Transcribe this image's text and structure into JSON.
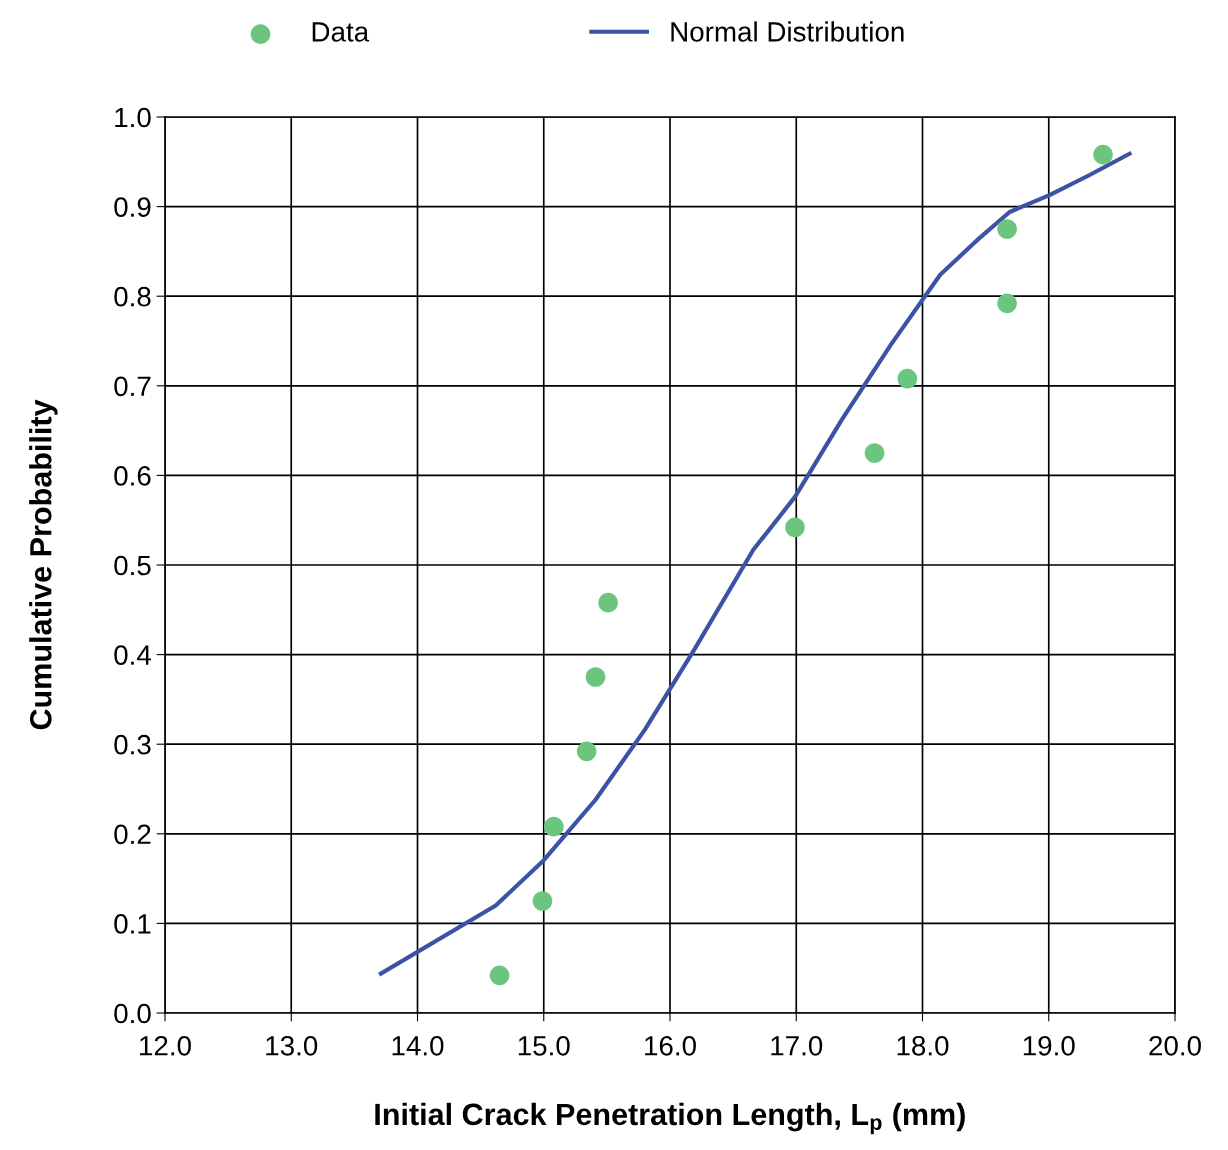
{
  "chart_data": {
    "type": "scatter",
    "xlabel": "Initial Crack Penetration Length, L$_{p}$ (mm)",
    "ylabel": "Cumulative Probability",
    "series": [
      {
        "name": "Data",
        "color": "#6cc57f",
        "marker": "circle",
        "x": [
          14.65,
          14.99,
          15.08,
          15.34,
          15.41,
          15.51,
          16.99,
          17.62,
          17.88,
          18.67,
          18.67,
          19.43
        ],
        "values": [
          0.042,
          0.125,
          0.208,
          0.292,
          0.375,
          0.458,
          0.542,
          0.625,
          0.708,
          0.792,
          0.875,
          0.958
        ]
      },
      {
        "name": "Normal Distribution",
        "type": "line",
        "color": "#3a53a4",
        "line_style": "solid",
        "x": [
          13.71,
          14.62,
          14.99,
          15.41,
          15.8,
          16.19,
          16.66,
          16.99,
          17.36,
          17.75,
          18.14,
          18.46,
          18.69,
          19.01,
          19.32,
          19.64
        ],
        "values": [
          0.044,
          0.12,
          0.169,
          0.238,
          0.316,
          0.405,
          0.517,
          0.576,
          0.662,
          0.746,
          0.824,
          0.866,
          0.894,
          0.913,
          0.935,
          0.959
        ]
      }
    ],
    "xlim": [
      12,
      20
    ],
    "xticks": [
      {
        "value": 12,
        "label": "12.0"
      },
      {
        "value": 13,
        "label": "13.0"
      },
      {
        "value": 14,
        "label": "14.0"
      },
      {
        "value": 15,
        "label": "15.0"
      },
      {
        "value": 16,
        "label": "16.0"
      },
      {
        "value": 17,
        "label": "17.0"
      },
      {
        "value": 18,
        "label": "18.0"
      },
      {
        "value": 19,
        "label": "19.0"
      },
      {
        "value": 20,
        "label": "20.0"
      }
    ],
    "ylim": [
      0,
      1
    ],
    "yticks": [
      {
        "value": 0,
        "label": "0.0"
      },
      0.1,
      0.2,
      0.3,
      0.4,
      0.5,
      0.6,
      0.7,
      0.8,
      0.9,
      {
        "value": 1,
        "label": "1.0"
      }
    ],
    "grid": true,
    "legend": "top"
  }
}
